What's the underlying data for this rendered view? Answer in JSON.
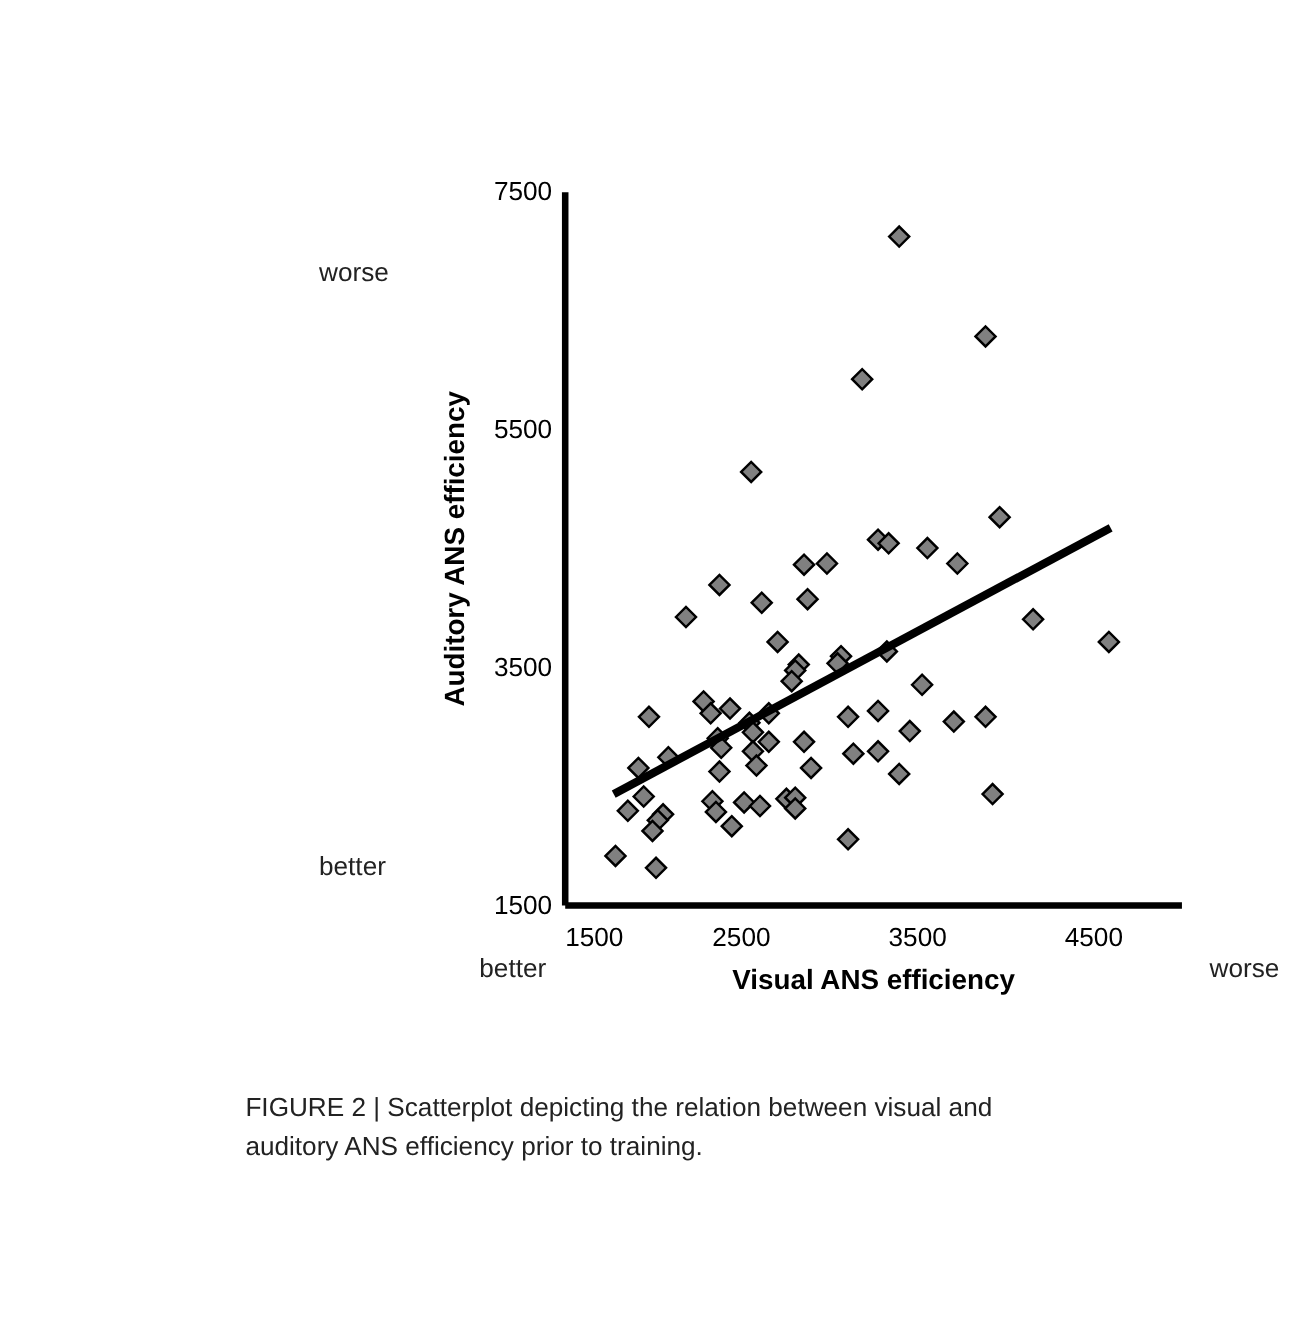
{
  "chart_data": {
    "type": "scatter",
    "xlabel": "Visual ANS efficiency",
    "ylabel": "Auditory ANS efficiency",
    "xlim": [
      1500,
      5000
    ],
    "ylim": [
      1500,
      7500
    ],
    "xticks": [
      1500,
      2500,
      3500,
      4500
    ],
    "yticks": [
      1500,
      3500,
      5500,
      7500
    ],
    "grid": false,
    "annotations": [
      "worse",
      "better",
      "better",
      "worse",
      "FIGURE 2 | Scatterplot depicting the relation between visual and auditory ANS efficiency prior to training."
    ],
    "series": [
      {
        "color": "#808080",
        "marker": "diamond",
        "x": [
          3400,
          3890,
          3190,
          2560,
          3970,
          3280,
          3340,
          3560,
          3730,
          2860,
          2990,
          2380,
          2880,
          2620,
          2190,
          4160,
          2710,
          4590,
          3070,
          3050,
          3330,
          2830,
          2810,
          2790,
          3530,
          2290,
          2330,
          2440,
          1980,
          2660,
          3110,
          3280,
          3890,
          3710,
          3460,
          2550,
          2570,
          2370,
          2390,
          2660,
          2860,
          2090,
          3140,
          3280,
          2570,
          2590,
          1920,
          2380,
          2900,
          3400,
          1950,
          1860,
          3930,
          2340,
          2360,
          2520,
          2610,
          2760,
          2810,
          2810,
          2060,
          2030,
          2000,
          2450,
          3110,
          1790,
          2020
        ],
        "values": [
          7120,
          6280,
          5920,
          5140,
          4760,
          4570,
          4540,
          4500,
          4370,
          4360,
          4370,
          4190,
          4070,
          4040,
          3920,
          3900,
          3710,
          3710,
          3590,
          3530,
          3630,
          3520,
          3470,
          3380,
          3350,
          3210,
          3110,
          3150,
          3080,
          3110,
          3080,
          3130,
          3080,
          3040,
          2960,
          3030,
          2950,
          2900,
          2820,
          2870,
          2870,
          2740,
          2770,
          2790,
          2790,
          2670,
          2650,
          2620,
          2650,
          2600,
          2410,
          2290,
          2430,
          2370,
          2280,
          2360,
          2330,
          2390,
          2400,
          2310,
          2260,
          2210,
          2120,
          2160,
          2050,
          1910,
          1810
        ]
      },
      {
        "type": "line",
        "color": "#000000",
        "marker": "none",
        "line_style": "solid",
        "x": [
          1780,
          4600
        ],
        "values": [
          2430,
          4670
        ]
      }
    ]
  }
}
